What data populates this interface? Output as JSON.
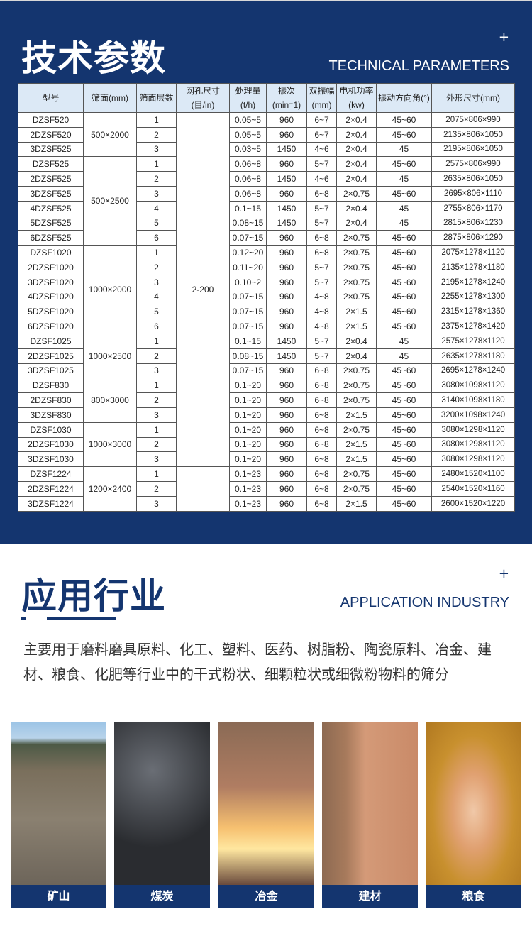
{
  "tech": {
    "title": "技术参数",
    "subtitle": "TECHNICAL PARAMETERS",
    "plus": "+"
  },
  "table": {
    "headers": [
      "型号",
      "筛面(mm)",
      "筛面层数",
      "网孔尺寸(目/in)",
      "处理量(t/h)",
      "振次(min⁻1)",
      "双振幅(mm)",
      "电机功率(kw)",
      "振动方向角(°)",
      "外形尺寸(mm)"
    ],
    "groups": [
      {
        "screen": "500×2000",
        "rows": [
          [
            "DZSF520",
            "1",
            "0.05~5",
            "960",
            "6~7",
            "2×0.4",
            "45~60",
            "2075×806×990"
          ],
          [
            "2DZSF520",
            "2",
            "0.05~5",
            "960",
            "6~7",
            "2×0.4",
            "45~60",
            "2135×806×1050"
          ],
          [
            "3DZSF525",
            "3",
            "0.03~5",
            "1450",
            "4~6",
            "2×0.4",
            "45",
            "2195×806×1050"
          ]
        ]
      },
      {
        "screen": "500×2500",
        "rows": [
          [
            "DZSF525",
            "1",
            "0.06~8",
            "960",
            "5~7",
            "2×0.4",
            "45~60",
            "2575×806×990"
          ],
          [
            "2DZSF525",
            "2",
            "0.06~8",
            "1450",
            "4~6",
            "2×0.4",
            "45",
            "2635×806×1050"
          ],
          [
            "3DZSF525",
            "3",
            "0.06~8",
            "960",
            "6~8",
            "2×0.75",
            "45~60",
            "2695×806×1110"
          ],
          [
            "4DZSF525",
            "4",
            "0.1~15",
            "1450",
            "5~7",
            "2×0.4",
            "45",
            "2755×806×1170"
          ],
          [
            "5DZSF525",
            "5",
            "0.08~15",
            "1450",
            "5~7",
            "2×0.4",
            "45",
            "2815×806×1230"
          ],
          [
            "6DZSF525",
            "6",
            "0.07~15",
            "960",
            "6~8",
            "2×0.75",
            "45~60",
            "2875×806×1290"
          ]
        ]
      },
      {
        "screen": "1000×2000",
        "rows": [
          [
            "DZSF1020",
            "1",
            "0.12~20",
            "960",
            "6~8",
            "2×0.75",
            "45~60",
            "2075×1278×1120"
          ],
          [
            "2DZSF1020",
            "2",
            "0.11~20",
            "960",
            "5~7",
            "2×0.75",
            "45~60",
            "2135×1278×1180"
          ],
          [
            "3DZSF1020",
            "3",
            "0.10~2",
            "960",
            "5~7",
            "2×0.75",
            "45~60",
            "2195×1278×1240"
          ],
          [
            "4DZSF1020",
            "4",
            "0.07~15",
            "960",
            "4~8",
            "2×0.75",
            "45~60",
            "2255×1278×1300"
          ],
          [
            "5DZSF1020",
            "5",
            "0.07~15",
            "960",
            "4~8",
            "2×1.5",
            "45~60",
            "2315×1278×1360"
          ],
          [
            "6DZSF1020",
            "6",
            "0.07~15",
            "960",
            "4~8",
            "2×1.5",
            "45~60",
            "2375×1278×1420"
          ]
        ]
      },
      {
        "screen": "1000×2500",
        "rows": [
          [
            "DZSF1025",
            "1",
            "0.1~15",
            "1450",
            "5~7",
            "2×0.4",
            "45",
            "2575×1278×1120"
          ],
          [
            "2DZSF1025",
            "2",
            "0.08~15",
            "1450",
            "5~7",
            "2×0.4",
            "45",
            "2635×1278×1180"
          ],
          [
            "3DZSF1025",
            "3",
            "0.07~15",
            "960",
            "6~8",
            "2×0.75",
            "45~60",
            "2695×1278×1240"
          ]
        ]
      },
      {
        "screen": "800×3000",
        "rows": [
          [
            "DZSF830",
            "1",
            "0.1~20",
            "960",
            "6~8",
            "2×0.75",
            "45~60",
            "3080×1098×1120"
          ],
          [
            "2DZSF830",
            "2",
            "0.1~20",
            "960",
            "6~8",
            "2×0.75",
            "45~60",
            "3140×1098×1180"
          ],
          [
            "3DZSF830",
            "3",
            "0.1~20",
            "960",
            "6~8",
            "2×1.5",
            "45~60",
            "3200×1098×1240"
          ]
        ]
      },
      {
        "screen": "1000×3000",
        "rows": [
          [
            "DZSF1030",
            "1",
            "0.1~20",
            "960",
            "6~8",
            "2×0.75",
            "45~60",
            "3080×1298×1120"
          ],
          [
            "2DZSF1030",
            "2",
            "0.1~20",
            "960",
            "6~8",
            "2×1.5",
            "45~60",
            "3080×1298×1120"
          ],
          [
            "3DZSF1030",
            "3",
            "0.1~20",
            "960",
            "6~8",
            "2×1.5",
            "45~60",
            "3080×1298×1120"
          ]
        ]
      },
      {
        "screen": "1200×2400",
        "rows": [
          [
            "DZSF1224",
            "1",
            "0.1~23",
            "960",
            "6~8",
            "2×0.75",
            "45~60",
            "2480×1520×1100"
          ],
          [
            "2DZSF1224",
            "2",
            "0.1~23",
            "960",
            "6~8",
            "2×0.75",
            "45~60",
            "2540×1520×1160"
          ],
          [
            "3DZSF1224",
            "3",
            "0.1~23",
            "960",
            "6~8",
            "2×1.5",
            "45~60",
            "2600×1520×1220"
          ]
        ]
      }
    ],
    "mesh": "2-200"
  },
  "app": {
    "title": "应用行业",
    "subtitle": "APPLICATION INDUSTRY",
    "plus": "+",
    "description": "主要用于磨料磨具原料、化工、塑料、医药、树脂粉、陶瓷原料、冶金、建材、粮食、化肥等行业中的干式粉状、细颗粒状或细微粉物料的筛分",
    "industries": [
      {
        "label": "矿山"
      },
      {
        "label": "煤炭"
      },
      {
        "label": "冶金"
      },
      {
        "label": "建材"
      },
      {
        "label": "粮食"
      }
    ]
  },
  "colors": {
    "navy": "#14356f",
    "header": "#dce9f6"
  }
}
